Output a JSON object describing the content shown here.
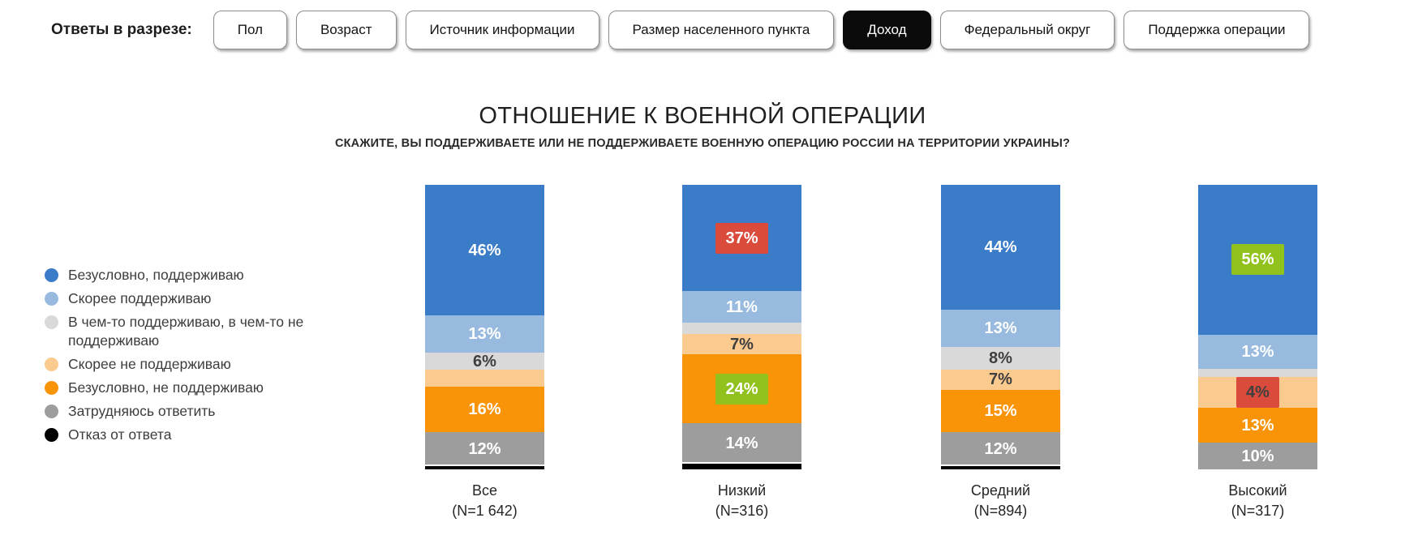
{
  "toolbar": {
    "label": "Ответы в разрезе:",
    "buttons": [
      {
        "id": "pol",
        "label": "Пол",
        "active": false
      },
      {
        "id": "vozrast",
        "label": "Возраст",
        "active": false
      },
      {
        "id": "istochnik-informacii",
        "label": "Источник информации",
        "active": false
      },
      {
        "id": "razmer-naselennogo-punkta",
        "label": "Размер населенного пункта",
        "active": false
      },
      {
        "id": "dohod",
        "label": "Доход",
        "active": true
      },
      {
        "id": "federalnyj-okrug",
        "label": "Федеральный округ",
        "active": false
      },
      {
        "id": "podderzhka-operacii",
        "label": "Поддержка операции",
        "active": false
      }
    ]
  },
  "chart_data": {
    "type": "bar",
    "stacked": true,
    "orientation": "vertical",
    "title": "ОТНОШЕНИЕ К ВОЕННОЙ ОПЕРАЦИИ",
    "subtitle": "СКАЖИТЕ, ВЫ ПОДДЕРЖИВАЕТЕ ИЛИ НЕ ПОДДЕРЖИВАЕТЕ ВОЕННУЮ ОПЕРАЦИЮ РОССИИ НА ТЕРРИТОРИИ УКРАИНЫ?",
    "value_unit": "%",
    "legend_position": "left",
    "significance_colors": {
      "higher": "#90c11c",
      "lower": "#db4b3c"
    },
    "series": [
      {
        "name": "Безусловно, поддерживаю",
        "color": "#3b7cc8",
        "label_color": "#ffffff"
      },
      {
        "name": "Скорее поддерживаю",
        "color": "#99badf",
        "label_color": "#ffffff"
      },
      {
        "name": "В чем-то поддерживаю, в чем-то не поддерживаю",
        "color": "#d9d9d9",
        "label_color": "#3f3f3f"
      },
      {
        "name": "Скорее не поддерживаю",
        "color": "#fbca8e",
        "label_color": "#3f3f3f"
      },
      {
        "name": "Безусловно, не поддерживаю",
        "color": "#f99408",
        "label_color": "#ffffff"
      },
      {
        "name": "Затрудняюсь ответить",
        "color": "#9d9d9d",
        "label_color": "#ffffff"
      },
      {
        "name": "Отказ от ответа",
        "color": "#000000",
        "label_color": "#ffffff"
      }
    ],
    "categories": [
      "Все",
      "Низкий",
      "Средний",
      "Высокий"
    ],
    "category_n_labels": [
      "(N=1 642)",
      "(N=316)",
      "(N=894)",
      "(N=317)"
    ],
    "bars": [
      {
        "category": "Все",
        "n": "(N=1 642)",
        "segments": [
          {
            "value": 46,
            "label": "46%"
          },
          {
            "value": 13,
            "label": "13%"
          },
          {
            "value": 6,
            "label": "6%"
          },
          {
            "value": 6,
            "label": ""
          },
          {
            "value": 16,
            "label": "16%"
          },
          {
            "value": 12,
            "label": "12%"
          },
          {
            "value": 1,
            "label": ""
          }
        ]
      },
      {
        "category": "Низкий",
        "n": "(N=316)",
        "segments": [
          {
            "value": 37,
            "label": "37%",
            "badge": "lower"
          },
          {
            "value": 11,
            "label": "11%"
          },
          {
            "value": 4,
            "label": ""
          },
          {
            "value": 7,
            "label": "7%"
          },
          {
            "value": 24,
            "label": "24%",
            "badge": "higher"
          },
          {
            "value": 14,
            "label": "14%"
          },
          {
            "value": 2,
            "label": ""
          }
        ]
      },
      {
        "category": "Средний",
        "n": "(N=894)",
        "segments": [
          {
            "value": 44,
            "label": "44%"
          },
          {
            "value": 13,
            "label": "13%"
          },
          {
            "value": 8,
            "label": "8%"
          },
          {
            "value": 7,
            "label": "7%"
          },
          {
            "value": 15,
            "label": "15%"
          },
          {
            "value": 12,
            "label": "12%"
          },
          {
            "value": 1,
            "label": ""
          }
        ]
      },
      {
        "category": "Высокий",
        "n": "(N=317)",
        "segments": [
          {
            "value": 56,
            "label": "56%",
            "badge": "higher"
          },
          {
            "value": 13,
            "label": "13%"
          },
          {
            "value": 3,
            "label": ""
          },
          {
            "value": 4,
            "label": "4%",
            "badge": "lower"
          },
          {
            "value": 13,
            "label": "13%"
          },
          {
            "value": 10,
            "label": "10%"
          },
          {
            "value": 0,
            "label": ""
          }
        ]
      }
    ]
  }
}
